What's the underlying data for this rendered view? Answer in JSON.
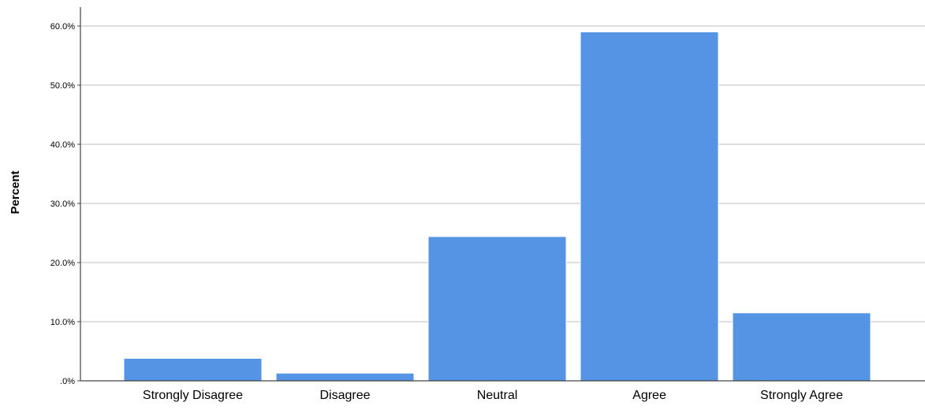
{
  "chart_data": {
    "type": "bar",
    "title": "",
    "xlabel": "",
    "ylabel": "Percent",
    "categories": [
      "Strongly Disagree",
      "Disagree",
      "Neutral",
      "Agree",
      "Strongly Agree"
    ],
    "values": [
      3.8,
      1.3,
      24.4,
      59.0,
      11.5
    ],
    "ylim": [
      0,
      62.5
    ],
    "yticks": [
      0,
      10,
      20,
      30,
      40,
      50,
      60
    ],
    "ytick_labels": [
      ".0%",
      "10.0%",
      "20.0%",
      "30.0%",
      "40.0%",
      "50.0%",
      "60.0%"
    ],
    "grid": true,
    "legend": "none",
    "colors": {
      "bar": "#5594e4",
      "bar_edge": "#ffffff",
      "grid": "#bdbdbd",
      "axis": "#444444",
      "text": "#000000"
    }
  }
}
